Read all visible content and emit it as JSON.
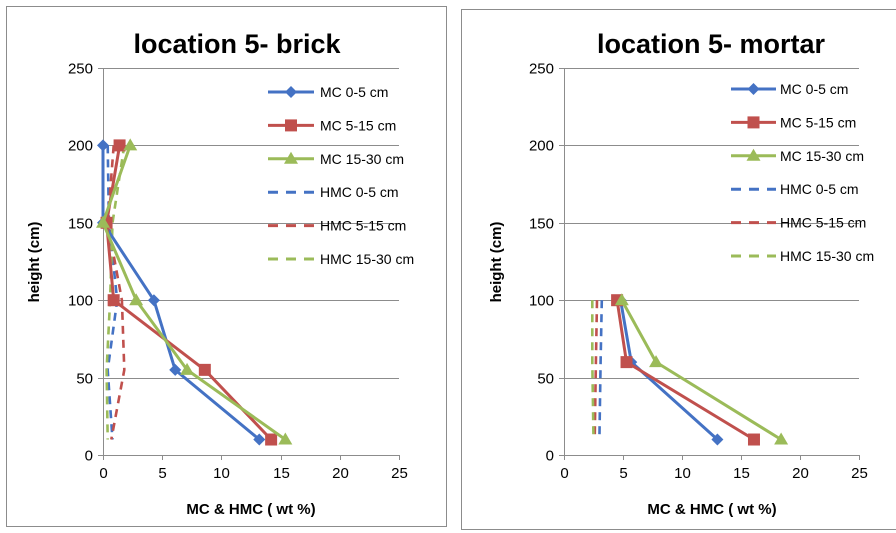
{
  "chart_data": [
    {
      "type": "line",
      "title": "location 5- brick",
      "xlabel": "MC & HMC (  wt  %)",
      "ylabel": "height (cm)",
      "xlim": [
        0,
        25
      ],
      "ylim": [
        0,
        250
      ],
      "xticks": [
        "0",
        "5",
        "10",
        "15",
        "20",
        "25"
      ],
      "yticks": [
        "0",
        "50",
        "100",
        "150",
        "200",
        "250"
      ],
      "grid": "horizontal",
      "legend_position": "right",
      "series": [
        {
          "name": "MC 0-5 cm",
          "color": "#4472C4",
          "style": "solid",
          "marker": "diamond",
          "points": [
            [
              0.0,
              200
            ],
            [
              0.0,
              150
            ],
            [
              4.3,
              100
            ],
            [
              6.1,
              55
            ],
            [
              13.2,
              10
            ]
          ]
        },
        {
          "name": "MC 5-15 cm",
          "color": "#C0504D",
          "style": "solid",
          "marker": "square",
          "points": [
            [
              1.4,
              200
            ],
            [
              0.3,
              150
            ],
            [
              0.9,
              100
            ],
            [
              8.6,
              55
            ],
            [
              14.2,
              10
            ]
          ]
        },
        {
          "name": "MC 15-30 cm",
          "color": "#9BBB59",
          "style": "solid",
          "marker": "triangle",
          "points": [
            [
              2.3,
              200
            ],
            [
              0.0,
              150
            ],
            [
              2.8,
              100
            ],
            [
              7.1,
              55
            ],
            [
              15.4,
              10
            ]
          ]
        },
        {
          "name": "HMC 0-5 cm",
          "color": "#4472C4",
          "style": "dashed",
          "marker": "none",
          "points": [
            [
              0.4,
              200
            ],
            [
              0.5,
              150
            ],
            [
              1.2,
              100
            ],
            [
              0.4,
              55
            ],
            [
              0.8,
              10
            ]
          ]
        },
        {
          "name": "HMC 5-15 cm",
          "color": "#C0504D",
          "style": "dashed",
          "marker": "none",
          "points": [
            [
              0.9,
              200
            ],
            [
              0.4,
              150
            ],
            [
              1.6,
              100
            ],
            [
              1.8,
              55
            ],
            [
              0.7,
              10
            ]
          ]
        },
        {
          "name": "HMC 15-30 cm",
          "color": "#9BBB59",
          "style": "dashed",
          "marker": "none",
          "points": [
            [
              1.8,
              200
            ],
            [
              0.8,
              150
            ],
            [
              0.6,
              100
            ],
            [
              0.3,
              55
            ],
            [
              0.4,
              10
            ]
          ]
        }
      ]
    },
    {
      "type": "line",
      "title": "location 5- mortar",
      "xlabel": "MC & HMC (  wt  %)",
      "ylabel": "height (cm)",
      "xlim": [
        0,
        25
      ],
      "ylim": [
        0,
        250
      ],
      "xticks": [
        "0",
        "5",
        "10",
        "15",
        "20",
        "25"
      ],
      "yticks": [
        "0",
        "50",
        "100",
        "150",
        "200",
        "250"
      ],
      "grid": "horizontal",
      "legend_position": "right",
      "series": [
        {
          "name": "MC 0-5 cm",
          "color": "#4472C4",
          "style": "solid",
          "marker": "diamond",
          "points": [
            [
              4.8,
              100
            ],
            [
              5.7,
              60
            ],
            [
              13.0,
              10
            ]
          ]
        },
        {
          "name": "MC 5-15 cm",
          "color": "#C0504D",
          "style": "solid",
          "marker": "square",
          "points": [
            [
              4.5,
              100
            ],
            [
              5.3,
              60
            ],
            [
              16.1,
              10
            ]
          ]
        },
        {
          "name": "MC 15-30 cm",
          "color": "#9BBB59",
          "style": "solid",
          "marker": "triangle",
          "points": [
            [
              4.9,
              100
            ],
            [
              7.8,
              60
            ],
            [
              18.4,
              10
            ]
          ]
        },
        {
          "name": "HMC 0-5 cm",
          "color": "#4472C4",
          "style": "dashed",
          "marker": "none",
          "points": [
            [
              3.2,
              100
            ],
            [
              3.1,
              60
            ],
            [
              3.0,
              10
            ]
          ]
        },
        {
          "name": "HMC 5-15 cm",
          "color": "#C0504D",
          "style": "dashed",
          "marker": "none",
          "points": [
            [
              2.8,
              100
            ],
            [
              2.7,
              60
            ],
            [
              2.6,
              10
            ]
          ]
        },
        {
          "name": "HMC 15-30 cm",
          "color": "#9BBB59",
          "style": "dashed",
          "marker": "none",
          "points": [
            [
              2.4,
              100
            ],
            [
              2.4,
              60
            ],
            [
              2.5,
              10
            ]
          ]
        }
      ]
    }
  ]
}
